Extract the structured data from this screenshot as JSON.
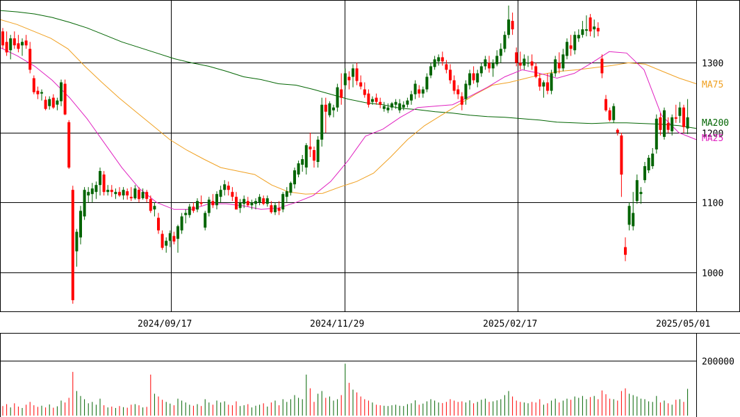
{
  "chart_data": {
    "type": "candlestick",
    "x_ticks": [
      "2024/09/17",
      "2024/11/29",
      "2025/02/17",
      "2025/05/01"
    ],
    "price_ticks": [
      1000,
      1100,
      1200,
      1300
    ],
    "price_range": [
      944,
      1390
    ],
    "volume_ticks": [
      {
        "value": 200000,
        "label": "200000"
      }
    ],
    "volume_range": [
      0,
      300000
    ],
    "legend": [
      {
        "name": "MA75",
        "color": "#f0a020"
      },
      {
        "name": "MA200",
        "color": "#006400"
      },
      {
        "name": "MA25",
        "color": "#e020c0"
      }
    ],
    "colors": {
      "up": "#006400",
      "down": "#ff0000",
      "ma75": "#f0a020",
      "ma200": "#006400",
      "ma25": "#e020c0",
      "grid": "#000000"
    },
    "ohlc": [
      [
        1345,
        1350,
        1320,
        1325
      ],
      [
        1330,
        1345,
        1310,
        1315
      ],
      [
        1318,
        1340,
        1305,
        1335
      ],
      [
        1335,
        1345,
        1320,
        1325
      ],
      [
        1328,
        1340,
        1315,
        1320
      ],
      [
        1325,
        1335,
        1310,
        1330
      ],
      [
        1332,
        1340,
        1320,
        1325
      ],
      [
        1320,
        1330,
        1285,
        1290
      ],
      [
        1278,
        1282,
        1255,
        1258
      ],
      [
        1260,
        1266,
        1248,
        1255
      ],
      [
        1256,
        1262,
        1246,
        1258
      ],
      [
        1247,
        1252,
        1232,
        1234
      ],
      [
        1238,
        1252,
        1233,
        1248
      ],
      [
        1250,
        1255,
        1234,
        1236
      ],
      [
        1240,
        1250,
        1232,
        1246
      ],
      [
        1245,
        1276,
        1238,
        1272
      ],
      [
        1270,
        1276,
        1225,
        1226
      ],
      [
        1215,
        1218,
        1148,
        1150
      ],
      [
        1118,
        1124,
        955,
        960
      ],
      [
        1030,
        1062,
        1008,
        1058
      ],
      [
        1050,
        1095,
        1040,
        1088
      ],
      [
        1080,
        1122,
        1075,
        1118
      ],
      [
        1110,
        1122,
        1100,
        1115
      ],
      [
        1112,
        1128,
        1100,
        1120
      ],
      [
        1115,
        1130,
        1105,
        1125
      ],
      [
        1125,
        1150,
        1110,
        1145
      ],
      [
        1140,
        1145,
        1110,
        1115
      ],
      [
        1115,
        1125,
        1110,
        1118
      ],
      [
        1118,
        1125,
        1108,
        1115
      ],
      [
        1112,
        1120,
        1105,
        1115
      ],
      [
        1115,
        1122,
        1108,
        1110
      ],
      [
        1110,
        1122,
        1104,
        1118
      ],
      [
        1116,
        1120,
        1104,
        1110
      ],
      [
        1108,
        1122,
        1102,
        1106
      ],
      [
        1106,
        1125,
        1104,
        1120
      ],
      [
        1118,
        1122,
        1100,
        1105
      ],
      [
        1106,
        1120,
        1104,
        1115
      ],
      [
        1115,
        1118,
        1100,
        1105
      ],
      [
        1105,
        1110,
        1085,
        1088
      ],
      [
        1090,
        1100,
        1080,
        1095
      ],
      [
        1078,
        1085,
        1055,
        1060
      ],
      [
        1055,
        1060,
        1032,
        1035
      ],
      [
        1038,
        1050,
        1028,
        1045
      ],
      [
        1045,
        1060,
        1036,
        1056
      ],
      [
        1052,
        1058,
        1040,
        1044
      ],
      [
        1048,
        1068,
        1028,
        1066
      ],
      [
        1060,
        1085,
        1055,
        1080
      ],
      [
        1082,
        1090,
        1070,
        1085
      ],
      [
        1082,
        1098,
        1078,
        1094
      ],
      [
        1094,
        1100,
        1085,
        1088
      ],
      [
        1090,
        1106,
        1086,
        1102
      ],
      [
        1100,
        1110,
        1095,
        1098
      ],
      [
        1064,
        1088,
        1060,
        1085
      ],
      [
        1085,
        1108,
        1080,
        1104
      ],
      [
        1102,
        1112,
        1092,
        1096
      ],
      [
        1096,
        1116,
        1090,
        1112
      ],
      [
        1108,
        1124,
        1100,
        1118
      ],
      [
        1118,
        1132,
        1110,
        1126
      ],
      [
        1124,
        1130,
        1110,
        1118
      ],
      [
        1115,
        1122,
        1102,
        1108
      ],
      [
        1108,
        1115,
        1090,
        1090
      ],
      [
        1092,
        1105,
        1085,
        1100
      ],
      [
        1098,
        1110,
        1092,
        1105
      ],
      [
        1102,
        1108,
        1094,
        1096
      ],
      [
        1096,
        1104,
        1090,
        1100
      ],
      [
        1098,
        1106,
        1090,
        1102
      ],
      [
        1100,
        1112,
        1096,
        1108
      ],
      [
        1106,
        1110,
        1096,
        1098
      ],
      [
        1098,
        1110,
        1094,
        1106
      ],
      [
        1096,
        1102,
        1084,
        1086
      ],
      [
        1086,
        1100,
        1082,
        1096
      ],
      [
        1092,
        1102,
        1082,
        1088
      ],
      [
        1090,
        1115,
        1086,
        1112
      ],
      [
        1108,
        1122,
        1100,
        1116
      ],
      [
        1114,
        1130,
        1110,
        1128
      ],
      [
        1126,
        1150,
        1120,
        1146
      ],
      [
        1140,
        1160,
        1136,
        1156
      ],
      [
        1154,
        1168,
        1144,
        1162
      ],
      [
        1150,
        1185,
        1140,
        1182
      ],
      [
        1180,
        1200,
        1165,
        1176
      ],
      [
        1175,
        1180,
        1150,
        1160
      ],
      [
        1158,
        1195,
        1150,
        1190
      ],
      [
        1190,
        1250,
        1180,
        1240
      ],
      [
        1240,
        1250,
        1200,
        1230
      ],
      [
        1225,
        1245,
        1222,
        1242
      ],
      [
        1232,
        1240,
        1222,
        1236
      ],
      [
        1236,
        1270,
        1230,
        1265
      ],
      [
        1262,
        1285,
        1240,
        1250
      ],
      [
        1268,
        1292,
        1262,
        1285
      ],
      [
        1280,
        1288,
        1262,
        1275
      ],
      [
        1280,
        1298,
        1265,
        1292
      ],
      [
        1292,
        1300,
        1268,
        1274
      ],
      [
        1272,
        1282,
        1262,
        1266
      ],
      [
        1262,
        1272,
        1250,
        1254
      ],
      [
        1256,
        1262,
        1236,
        1240
      ],
      [
        1244,
        1252,
        1240,
        1248
      ],
      [
        1250,
        1256,
        1240,
        1244
      ],
      [
        1244,
        1250,
        1235,
        1240
      ],
      [
        1234,
        1244,
        1230,
        1238
      ],
      [
        1232,
        1242,
        1228,
        1236
      ],
      [
        1236,
        1244,
        1232,
        1242
      ],
      [
        1240,
        1248,
        1234,
        1244
      ],
      [
        1232,
        1248,
        1228,
        1242
      ],
      [
        1236,
        1245,
        1232,
        1240
      ],
      [
        1240,
        1250,
        1236,
        1246
      ],
      [
        1246,
        1260,
        1240,
        1255
      ],
      [
        1255,
        1275,
        1248,
        1270
      ],
      [
        1262,
        1268,
        1250,
        1256
      ],
      [
        1256,
        1266,
        1250,
        1262
      ],
      [
        1262,
        1285,
        1258,
        1280
      ],
      [
        1282,
        1300,
        1278,
        1295
      ],
      [
        1294,
        1310,
        1290,
        1305
      ],
      [
        1302,
        1312,
        1296,
        1308
      ],
      [
        1308,
        1316,
        1296,
        1302
      ],
      [
        1298,
        1304,
        1285,
        1290
      ],
      [
        1290,
        1298,
        1270,
        1275
      ],
      [
        1275,
        1282,
        1255,
        1260
      ],
      [
        1262,
        1268,
        1248,
        1255
      ],
      [
        1252,
        1258,
        1232,
        1240
      ],
      [
        1248,
        1275,
        1240,
        1270
      ],
      [
        1268,
        1290,
        1262,
        1285
      ],
      [
        1285,
        1295,
        1270,
        1275
      ],
      [
        1272,
        1290,
        1265,
        1285
      ],
      [
        1285,
        1300,
        1280,
        1295
      ],
      [
        1295,
        1310,
        1290,
        1305
      ],
      [
        1300,
        1310,
        1286,
        1292
      ],
      [
        1292,
        1305,
        1280,
        1300
      ],
      [
        1298,
        1318,
        1295,
        1310
      ],
      [
        1310,
        1328,
        1300,
        1320
      ],
      [
        1320,
        1345,
        1315,
        1340
      ],
      [
        1340,
        1382,
        1335,
        1362
      ],
      [
        1360,
        1372,
        1340,
        1348
      ],
      [
        1315,
        1322,
        1295,
        1300
      ],
      [
        1300,
        1316,
        1290,
        1296
      ],
      [
        1296,
        1312,
        1290,
        1306
      ],
      [
        1300,
        1310,
        1294,
        1300
      ],
      [
        1302,
        1312,
        1290,
        1296
      ],
      [
        1295,
        1300,
        1278,
        1280
      ],
      [
        1278,
        1285,
        1260,
        1266
      ],
      [
        1266,
        1275,
        1250,
        1272
      ],
      [
        1272,
        1285,
        1255,
        1260
      ],
      [
        1260,
        1290,
        1255,
        1285
      ],
      [
        1285,
        1310,
        1280,
        1305
      ],
      [
        1300,
        1315,
        1285,
        1292
      ],
      [
        1292,
        1320,
        1288,
        1312
      ],
      [
        1310,
        1335,
        1305,
        1330
      ],
      [
        1325,
        1340,
        1310,
        1320
      ],
      [
        1318,
        1345,
        1312,
        1340
      ],
      [
        1335,
        1348,
        1330,
        1340
      ],
      [
        1340,
        1360,
        1336,
        1348
      ],
      [
        1346,
        1368,
        1338,
        1348
      ],
      [
        1365,
        1370,
        1338,
        1345
      ],
      [
        1348,
        1362,
        1336,
        1352
      ],
      [
        1350,
        1358,
        1338,
        1345
      ],
      [
        1306,
        1312,
        1278,
        1285
      ],
      [
        1248,
        1254,
        1230,
        1232
      ],
      [
        1232,
        1236,
        1216,
        1218
      ],
      [
        1218,
        1242,
        1214,
        1238
      ],
      [
        1204,
        1206,
        1196,
        1200
      ],
      [
        1196,
        1200,
        1108,
        1140
      ],
      [
        1036,
        1050,
        1016,
        1025
      ],
      [
        1068,
        1100,
        1060,
        1095
      ],
      [
        1066,
        1115,
        1060,
        1085
      ],
      [
        1102,
        1140,
        1098,
        1132
      ],
      [
        1112,
        1122,
        1098,
        1115
      ],
      [
        1132,
        1158,
        1128,
        1152
      ],
      [
        1146,
        1168,
        1142,
        1164
      ],
      [
        1152,
        1178,
        1148,
        1170
      ],
      [
        1176,
        1226,
        1170,
        1220
      ],
      [
        1222,
        1228,
        1196,
        1204
      ],
      [
        1194,
        1236,
        1190,
        1232
      ],
      [
        1214,
        1222,
        1200,
        1204
      ],
      [
        1202,
        1226,
        1196,
        1222
      ],
      [
        1222,
        1240,
        1214,
        1220
      ],
      [
        1224,
        1244,
        1214,
        1236
      ],
      [
        1236,
        1240,
        1200,
        1208
      ],
      [
        1206,
        1248,
        1198,
        1222
      ]
    ],
    "ma25": [
      1322,
      1310,
      1295,
      1275,
      1250,
      1220,
      1185,
      1150,
      1120,
      1100,
      1090,
      1090,
      1098,
      1098,
      1095,
      1090,
      1092,
      1100,
      1110,
      1130,
      1160,
      1195,
      1205,
      1222,
      1236,
      1238,
      1240,
      1252,
      1265,
      1280,
      1290,
      1285,
      1278,
      1285,
      1300,
      1316,
      1314,
      1290,
      1225,
      1200,
      1190
    ],
    "ma75": [
      1362,
      1355,
      1345,
      1335,
      1320,
      1295,
      1272,
      1250,
      1230,
      1210,
      1190,
      1175,
      1162,
      1150,
      1145,
      1140,
      1125,
      1115,
      1112,
      1113,
      1122,
      1130,
      1142,
      1165,
      1190,
      1210,
      1225,
      1240,
      1255,
      1268,
      1272,
      1278,
      1284,
      1288,
      1290,
      1293,
      1296,
      1300,
      1298,
      1288,
      1278,
      1270
    ],
    "ma200": [
      1375,
      1373,
      1370,
      1365,
      1358,
      1350,
      1340,
      1330,
      1322,
      1314,
      1306,
      1300,
      1295,
      1288,
      1280,
      1276,
      1270,
      1268,
      1262,
      1255,
      1248,
      1243,
      1240,
      1235,
      1233,
      1230,
      1228,
      1225,
      1223,
      1222,
      1220,
      1218,
      1215,
      1214,
      1213,
      1214,
      1214,
      1213,
      1212,
      1210,
      1206
    ],
    "volume": [
      35000,
      42000,
      30000,
      45000,
      33000,
      28000,
      40000,
      50000,
      38000,
      32000,
      36000,
      30000,
      41000,
      29000,
      34000,
      55000,
      48000,
      65000,
      160000,
      90000,
      72000,
      60000,
      45000,
      50000,
      40000,
      62000,
      38000,
      30000,
      33000,
      28000,
      35000,
      31000,
      29000,
      40000,
      42000,
      38000,
      30000,
      32000,
      150000,
      80000,
      70000,
      58000,
      50000,
      44000,
      38000,
      62000,
      55000,
      48000,
      40000,
      36000,
      42000,
      35000,
      60000,
      48000,
      40000,
      55000,
      48000,
      52000,
      40000,
      38000,
      52000,
      35000,
      38000,
      42000,
      30000,
      36000,
      40000,
      45000,
      33000,
      48000,
      55000,
      38000,
      60000,
      50000,
      60000,
      75000,
      65000,
      60000,
      150000,
      100000,
      50000,
      80000,
      90000,
      65000,
      70000,
      55000,
      60000,
      75000,
      190000,
      120000,
      95000,
      85000,
      70000,
      60000,
      55000,
      48000,
      40000,
      38000,
      36000,
      35000,
      38000,
      40000,
      36000,
      35000,
      42000,
      45000,
      56000,
      40000,
      44000,
      52000,
      60000,
      55000,
      48000,
      46000,
      50000,
      60000,
      55000,
      50000,
      52000,
      48000,
      56000,
      45000,
      50000,
      58000,
      62000,
      50000,
      52000,
      56000,
      60000,
      75000,
      90000,
      70000,
      55000,
      50000,
      48000,
      45000,
      50000,
      48000,
      60000,
      40000,
      45000,
      55000,
      62000,
      48000,
      55000,
      62000,
      58000,
      70000,
      65000,
      72000,
      60000,
      68000,
      72000,
      60000,
      92000,
      78000,
      62000,
      60000,
      55000,
      90000,
      100000,
      80000,
      75000,
      70000,
      62000,
      60000,
      52000,
      50000,
      72000,
      48000,
      55000,
      45000,
      40000,
      58000,
      60000,
      50000,
      98000
    ]
  }
}
